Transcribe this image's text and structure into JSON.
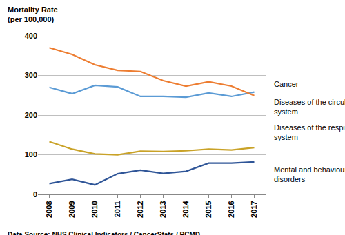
{
  "chart_data": {
    "type": "line",
    "y_label": "Mortality Rate (per 100,000)",
    "source": "Data Source: NHS Clinical Indicators / CancerStats / PCMD",
    "categories": [
      "2008",
      "2009",
      "2010",
      "2011",
      "2012",
      "2013",
      "2014",
      "2015",
      "2016",
      "2017"
    ],
    "series": [
      {
        "name": "Cancer",
        "color": "#5b9bd5",
        "values": [
          270,
          254,
          275,
          271,
          247,
          247,
          245,
          256,
          247,
          258
        ]
      },
      {
        "name": "Diseases of the circulatory system",
        "color": "#ed7d31",
        "values": [
          370,
          353,
          327,
          313,
          310,
          287,
          273,
          284,
          273,
          249
        ]
      },
      {
        "name": "Diseases of the respiratory system",
        "color": "#c9a227",
        "values": [
          133,
          114,
          102,
          100,
          109,
          108,
          110,
          114,
          112,
          118
        ]
      },
      {
        "name": "Mental and behavioural disorders",
        "color": "#2f5597",
        "values": [
          27,
          38,
          24,
          52,
          61,
          53,
          58,
          79,
          79,
          82
        ]
      }
    ],
    "ylim": [
      0,
      400
    ],
    "yticks": [
      0,
      100,
      200,
      300,
      400
    ],
    "grid": true
  }
}
